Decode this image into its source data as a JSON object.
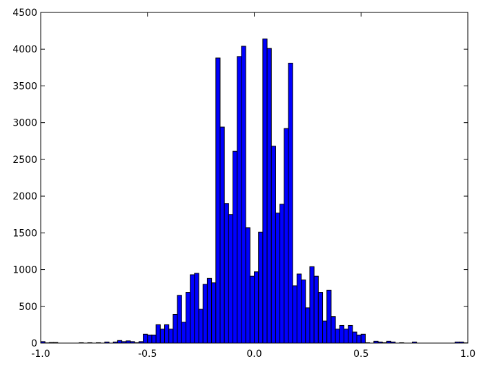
{
  "chart_data": {
    "type": "bar",
    "subtype": "histogram",
    "title": "",
    "xlabel": "",
    "ylabel": "",
    "xlim": [
      -1.0,
      1.0
    ],
    "ylim": [
      0,
      4500
    ],
    "grid": false,
    "bar_color": "#0000ff",
    "edge_color": "#000000",
    "bin_start": -1.0,
    "bin_width": 0.02,
    "values": [
      20,
      3,
      8,
      8,
      0,
      0,
      0,
      0,
      0,
      5,
      0,
      5,
      0,
      5,
      0,
      15,
      0,
      15,
      35,
      20,
      30,
      20,
      5,
      20,
      120,
      110,
      110,
      250,
      190,
      250,
      190,
      390,
      650,
      285,
      690,
      930,
      950,
      460,
      800,
      880,
      820,
      3880,
      2940,
      1900,
      1750,
      2610,
      3900,
      4040,
      1570,
      910,
      970,
      1510,
      4140,
      4010,
      2680,
      1770,
      1890,
      2920,
      3810,
      780,
      940,
      860,
      480,
      1040,
      910,
      690,
      300,
      720,
      360,
      190,
      240,
      190,
      240,
      150,
      110,
      120,
      5,
      0,
      25,
      15,
      5,
      25,
      15,
      0,
      5,
      0,
      0,
      15,
      0,
      0,
      0,
      0,
      0,
      0,
      0,
      0,
      0,
      15,
      15,
      3
    ],
    "xticks": [
      "-1.0",
      "-0.5",
      "0.0",
      "0.5",
      "1.0"
    ],
    "xtick_values": [
      -1.0,
      -0.5,
      0.0,
      0.5,
      1.0
    ],
    "yticks": [
      "0",
      "500",
      "1000",
      "1500",
      "2000",
      "2500",
      "3000",
      "3500",
      "4000",
      "4500"
    ],
    "ytick_values": [
      0,
      500,
      1000,
      1500,
      2000,
      2500,
      3000,
      3500,
      4000,
      4500
    ]
  }
}
